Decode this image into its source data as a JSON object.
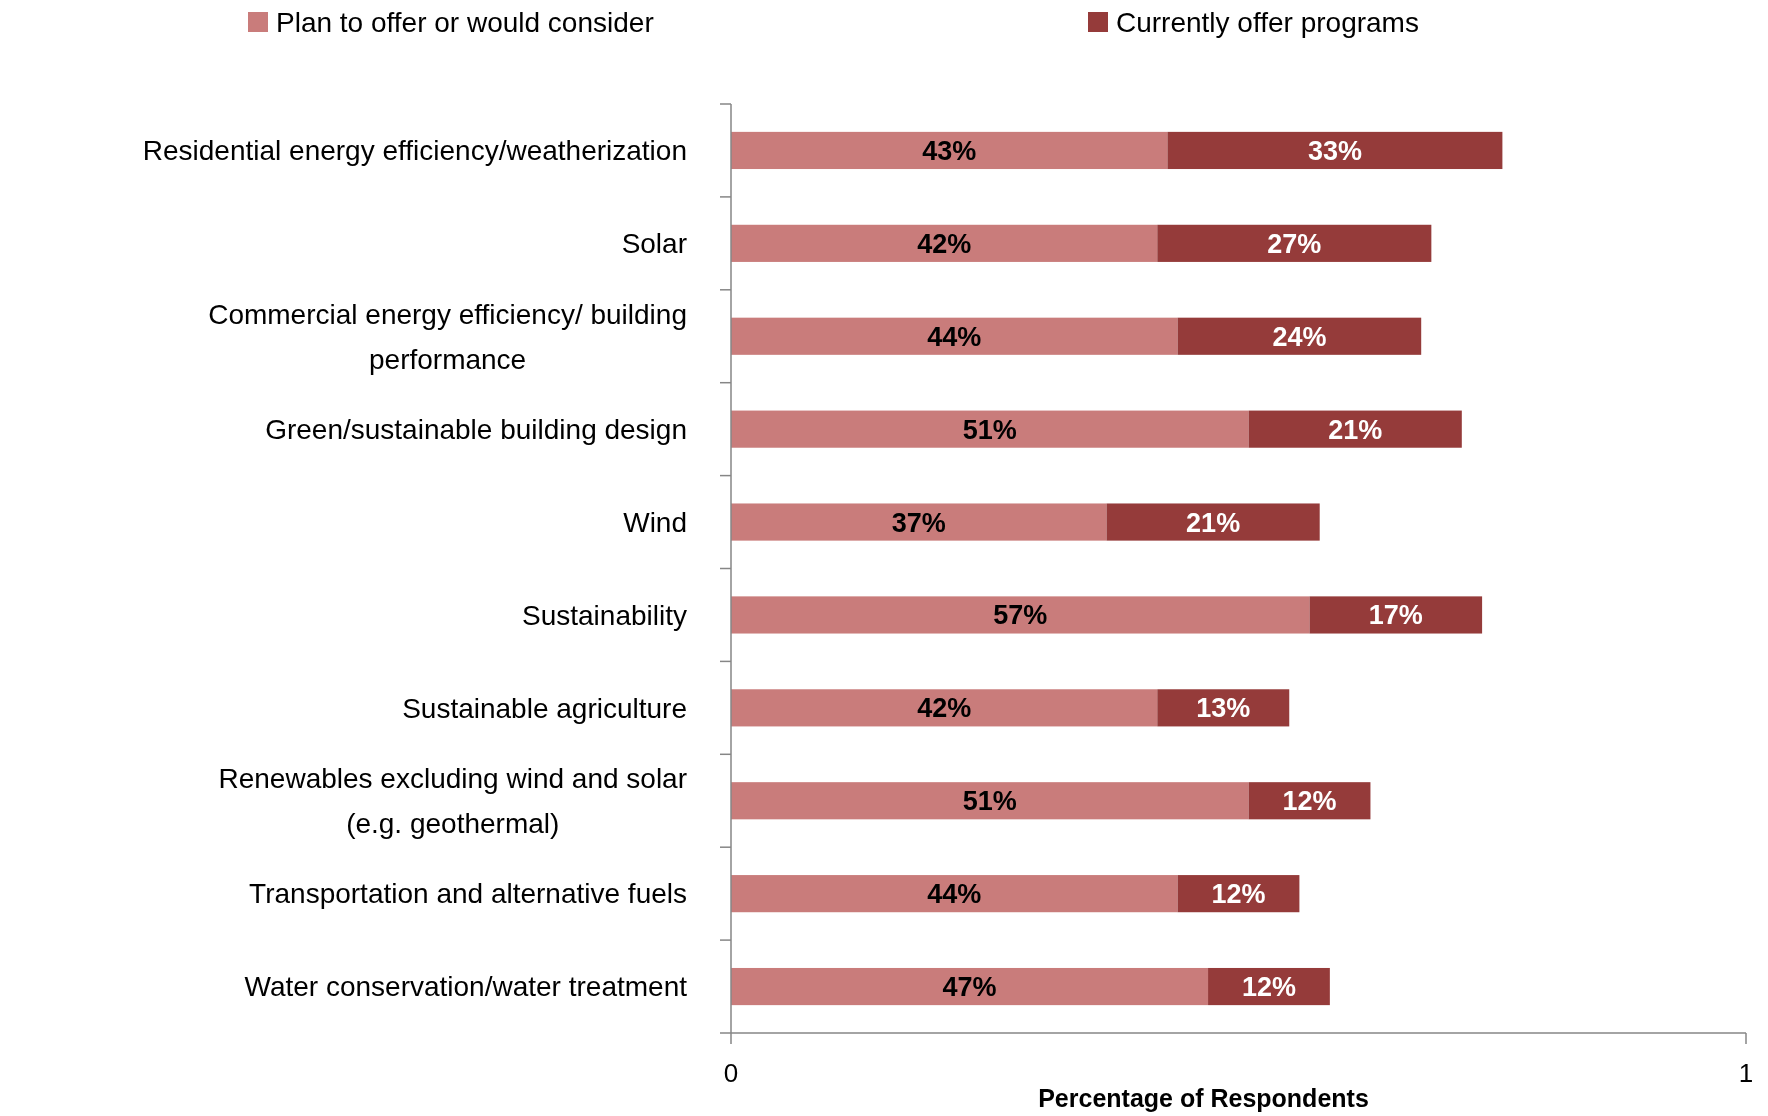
{
  "chart_data": {
    "type": "bar",
    "orientation": "horizontal",
    "stacked": true,
    "categories": [
      "Residential energy efficiency/weatherization",
      "Solar",
      "Commercial energy efficiency/ building\nperformance",
      "Green/sustainable building design",
      "Wind",
      "Sustainability",
      "Sustainable agriculture",
      "Renewables excluding wind and solar\n(e.g. geothermal)",
      "Transportation and alternative fuels",
      "Water conservation/water treatment"
    ],
    "series": [
      {
        "name": "Plan to offer or would consider",
        "color": "#c97c7b",
        "values": [
          0.43,
          0.42,
          0.44,
          0.51,
          0.37,
          0.57,
          0.42,
          0.51,
          0.44,
          0.47
        ],
        "value_labels": [
          "43%",
          "42%",
          "44%",
          "51%",
          "37%",
          "57%",
          "42%",
          "51%",
          "44%",
          "47%"
        ]
      },
      {
        "name": "Currently offer programs",
        "color": "#953b3a",
        "values": [
          0.33,
          0.27,
          0.24,
          0.21,
          0.21,
          0.17,
          0.13,
          0.12,
          0.12,
          0.12
        ],
        "value_labels": [
          "33%",
          "27%",
          "24%",
          "21%",
          "21%",
          "17%",
          "13%",
          "12%",
          "12%",
          "12%"
        ]
      }
    ],
    "xlim": [
      0,
      1
    ],
    "xticks": [
      0,
      1
    ],
    "xlabel": "Percentage of Respondents",
    "legend": "top"
  }
}
